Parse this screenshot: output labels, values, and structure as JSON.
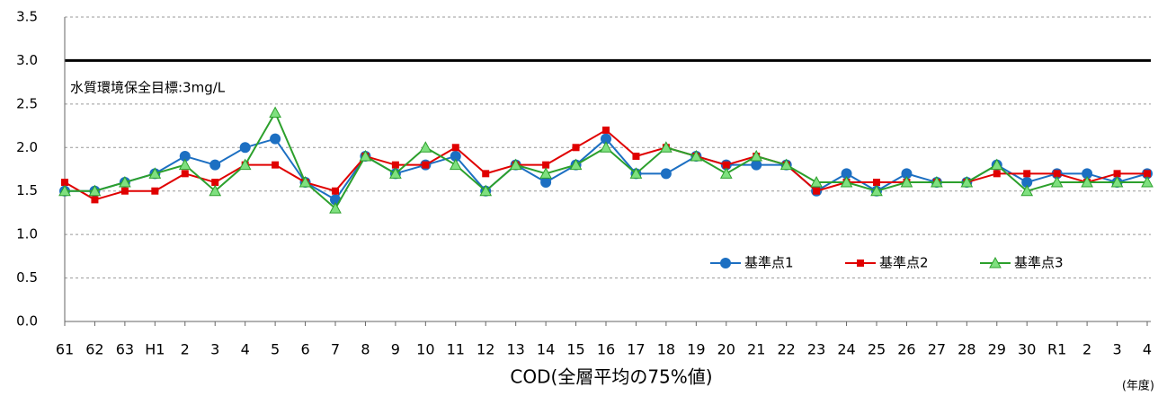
{
  "chart_data": {
    "type": "line",
    "annotation": "水質環境保全目標:3mg/L",
    "reference_line": {
      "value": 3,
      "color": "#000000"
    },
    "x_label": "COD(全層平均の75%値)",
    "x_unit": "(年度)",
    "categories": [
      "61",
      "62",
      "63",
      "H1",
      "2",
      "3",
      "4",
      "5",
      "6",
      "7",
      "8",
      "9",
      "10",
      "11",
      "12",
      "13",
      "14",
      "15",
      "16",
      "17",
      "18",
      "19",
      "20",
      "21",
      "22",
      "23",
      "24",
      "25",
      "26",
      "27",
      "28",
      "29",
      "30",
      "R1",
      "2",
      "3",
      "4"
    ],
    "series": [
      {
        "name": "基準点1",
        "color": "#1c6fc2",
        "marker": "circle",
        "values": [
          1.5,
          1.5,
          1.6,
          1.7,
          1.9,
          1.8,
          2.0,
          2.1,
          1.6,
          1.4,
          1.9,
          1.7,
          1.8,
          1.9,
          1.5,
          1.8,
          1.6,
          1.8,
          2.1,
          1.7,
          1.7,
          1.9,
          1.8,
          1.8,
          1.8,
          1.5,
          1.7,
          1.5,
          1.7,
          1.6,
          1.6,
          1.8,
          1.6,
          1.7,
          1.7,
          1.6,
          1.7
        ]
      },
      {
        "name": "基準点2",
        "color": "#e00000",
        "marker": "square",
        "values": [
          1.6,
          1.4,
          1.5,
          1.5,
          1.7,
          1.6,
          1.8,
          1.8,
          1.6,
          1.5,
          1.9,
          1.8,
          1.8,
          2.0,
          1.7,
          1.8,
          1.8,
          2.0,
          2.2,
          1.9,
          2.0,
          1.9,
          1.8,
          1.9,
          1.8,
          1.5,
          1.6,
          1.6,
          1.6,
          1.6,
          1.6,
          1.7,
          1.7,
          1.7,
          1.6,
          1.7,
          1.7
        ]
      },
      {
        "name": "基準点3",
        "color": "#2ca02c",
        "marker": "triangle",
        "values": [
          1.5,
          1.5,
          1.6,
          1.7,
          1.8,
          1.5,
          1.8,
          2.4,
          1.6,
          1.3,
          1.9,
          1.7,
          2.0,
          1.8,
          1.5,
          1.8,
          1.7,
          1.8,
          2.0,
          1.7,
          2.0,
          1.9,
          1.7,
          1.9,
          1.8,
          1.6,
          1.6,
          1.5,
          1.6,
          1.6,
          1.6,
          1.8,
          1.5,
          1.6,
          1.6,
          1.6,
          1.6
        ]
      }
    ],
    "ylim": [
      0,
      3.5
    ],
    "yticks": [
      {
        "value": 0,
        "label": "0.0"
      },
      0.5,
      {
        "value": 1,
        "label": "1.0"
      },
      1.5,
      {
        "value": 2,
        "label": "2.0"
      },
      2.5,
      {
        "value": 3,
        "label": "3.0"
      },
      3.5
    ],
    "grid": true,
    "legend": "lower right"
  }
}
